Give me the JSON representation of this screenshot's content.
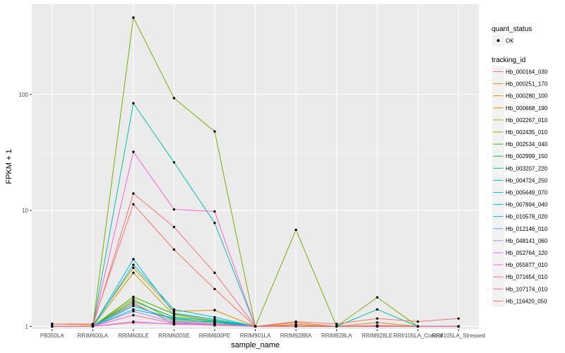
{
  "chart_data": {
    "type": "line",
    "title": "",
    "xlabel": "sample_name",
    "ylabel": "FPKM + 1",
    "yscale": "log10",
    "ylim": [
      0.95,
      600
    ],
    "yticks": [
      1,
      10,
      100
    ],
    "ytick_labels": [
      "1",
      "10",
      "100"
    ],
    "grid": true,
    "categories": [
      "PB350LA",
      "RRIM600LA",
      "RRIM600LE",
      "RRIM600SE",
      "RRIM600PE",
      "RRIM901LA",
      "RRIM928BA",
      "RRIM928LA",
      "RRIM928LE",
      "RRII105LA_Control",
      "RRII105LA_Stressed"
    ],
    "legend_placement": "right",
    "legend_shape": {
      "title": "quant_status",
      "entries": [
        "OK"
      ]
    },
    "legend_color": {
      "title": "tracking_id"
    },
    "series": [
      {
        "name": "Hb_000164_030",
        "color": "#F8766D",
        "values": [
          1.0,
          1.0,
          1.08,
          1.05,
          1.05,
          1.0,
          1.04,
          1.0,
          1.02,
          1.0,
          1.0
        ]
      },
      {
        "name": "Hb_000251_170",
        "color": "#EA8331",
        "values": [
          1.0,
          1.0,
          1.6,
          1.05,
          1.02,
          1.0,
          1.08,
          1.0,
          1.0,
          1.0,
          1.0
        ]
      },
      {
        "name": "Hb_000280_100",
        "color": "#D89000",
        "values": [
          1.05,
          1.03,
          3.2,
          1.35,
          1.38,
          1.0,
          1.03,
          1.0,
          1.08,
          1.0,
          1.0
        ]
      },
      {
        "name": "Hb_000668_190",
        "color": "#C09B00",
        "values": [
          1.0,
          1.0,
          2.9,
          1.25,
          1.12,
          1.0,
          1.0,
          1.0,
          1.0,
          1.0,
          1.0
        ]
      },
      {
        "name": "Hb_002267_010",
        "color": "#A3A500",
        "values": [
          1.0,
          1.0,
          1.72,
          1.12,
          1.08,
          1.0,
          1.0,
          1.0,
          1.0,
          1.0,
          1.0
        ]
      },
      {
        "name": "Hb_002435_010",
        "color": "#7CAE00",
        "values": [
          1.0,
          1.0,
          460,
          93,
          48,
          1.0,
          6.8,
          1.0,
          1.78,
          1.0,
          1.0
        ]
      },
      {
        "name": "Hb_002534_040",
        "color": "#39B600",
        "values": [
          1.0,
          1.0,
          1.8,
          1.28,
          1.15,
          1.0,
          1.0,
          1.0,
          1.0,
          1.0,
          1.0
        ]
      },
      {
        "name": "Hb_002999_150",
        "color": "#00BB4E",
        "values": [
          1.0,
          1.0,
          1.65,
          1.2,
          1.12,
          1.0,
          1.0,
          1.0,
          1.0,
          1.0,
          1.0
        ]
      },
      {
        "name": "Hb_003207_220",
        "color": "#00BF7D",
        "values": [
          1.0,
          1.0,
          1.5,
          1.15,
          1.1,
          1.0,
          1.0,
          1.0,
          1.0,
          1.0,
          1.0
        ]
      },
      {
        "name": "Hb_004724_250",
        "color": "#00C1A3",
        "values": [
          1.0,
          1.0,
          84,
          26,
          7.8,
          1.0,
          1.0,
          1.0,
          1.4,
          1.0,
          1.0
        ]
      },
      {
        "name": "Hb_005649_070",
        "color": "#00BFC4",
        "values": [
          1.0,
          1.0,
          3.4,
          1.4,
          1.2,
          1.0,
          1.0,
          1.0,
          1.0,
          1.0,
          1.0
        ]
      },
      {
        "name": "Hb_007894_040",
        "color": "#00B8E5",
        "values": [
          1.0,
          1.0,
          3.8,
          1.3,
          1.15,
          1.0,
          1.0,
          1.0,
          1.0,
          1.0,
          1.0
        ]
      },
      {
        "name": "Hb_010578_020",
        "color": "#00ABFD",
        "values": [
          1.0,
          1.0,
          1.4,
          1.18,
          1.08,
          1.0,
          1.0,
          1.0,
          1.0,
          1.0,
          1.0
        ]
      },
      {
        "name": "Hb_012146_010",
        "color": "#619CFF",
        "values": [
          1.0,
          1.0,
          1.55,
          1.1,
          1.05,
          1.0,
          1.0,
          1.0,
          1.0,
          1.0,
          1.0
        ]
      },
      {
        "name": "Hb_048141_060",
        "color": "#A58AFF",
        "values": [
          1.0,
          1.0,
          1.35,
          1.08,
          1.05,
          1.0,
          1.0,
          1.0,
          1.0,
          1.0,
          1.0
        ]
      },
      {
        "name": "Hb_052764_120",
        "color": "#DF70F8",
        "values": [
          1.0,
          1.0,
          1.1,
          1.04,
          1.03,
          1.0,
          1.0,
          1.0,
          1.0,
          1.0,
          1.0
        ]
      },
      {
        "name": "Hb_055877_010",
        "color": "#FB61D7",
        "values": [
          1.0,
          1.0,
          32,
          10.2,
          9.8,
          1.0,
          1.0,
          1.0,
          1.0,
          1.0,
          1.0
        ]
      },
      {
        "name": "Hb_071654_010",
        "color": "#FF66A8",
        "values": [
          1.0,
          1.0,
          1.25,
          1.06,
          1.04,
          1.0,
          1.0,
          1.0,
          1.0,
          1.0,
          1.0
        ]
      },
      {
        "name": "Hb_107174_010",
        "color": "#FC717F",
        "values": [
          1.0,
          1.0,
          14,
          7.2,
          2.9,
          1.0,
          1.0,
          1.0,
          1.0,
          1.0,
          1.0
        ]
      },
      {
        "name": "Hb_116420_050",
        "color": "#F8766D",
        "values": [
          1.05,
          1.05,
          11.3,
          4.6,
          2.1,
          1.0,
          1.1,
          1.05,
          1.17,
          1.1,
          1.17
        ]
      }
    ]
  }
}
